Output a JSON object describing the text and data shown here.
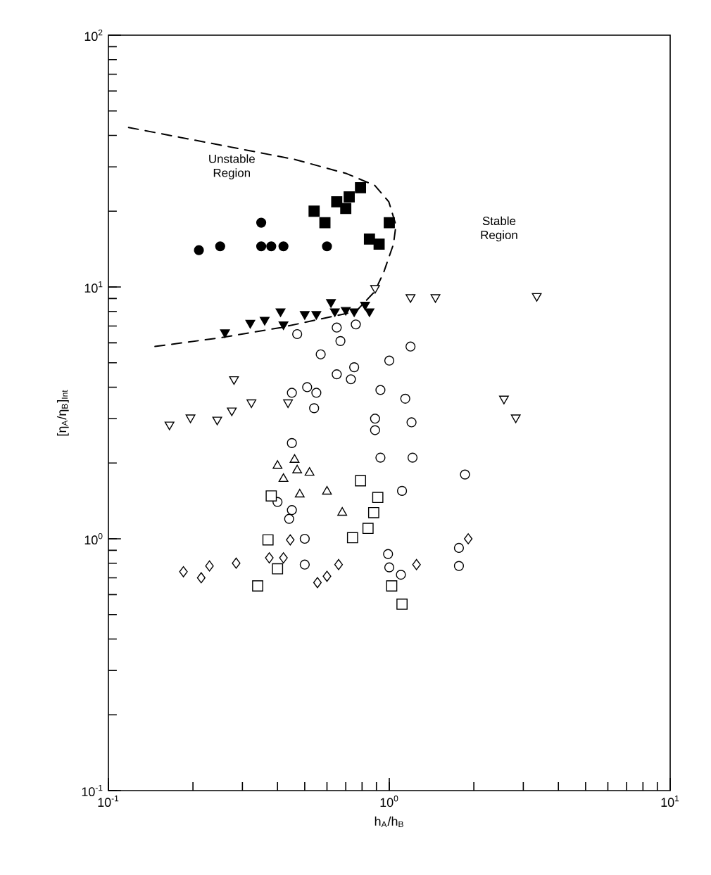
{
  "chart_data": {
    "type": "scatter",
    "xlabel": "h$_{A}$/h$_{B}$",
    "ylabel": "[η$_{A}$/η$_{B}$]$_{Int}$",
    "log": "xy",
    "grid": false,
    "xlim": [
      0.1,
      10
    ],
    "ylim": [
      0.1,
      100
    ],
    "xticks": [
      {
        "value": 0.1,
        "label": "10$^{-1}$"
      },
      {
        "value": 1,
        "label": "10$^{0}$"
      },
      {
        "value": 10,
        "label": "10$^{1}$"
      }
    ],
    "yticks": [
      {
        "value": 0.1,
        "label": "10$^{-1}$"
      },
      {
        "value": 1,
        "label": "10$^{0}$"
      },
      {
        "value": 10,
        "label": "10$^{1}$"
      },
      {
        "value": 100,
        "label": "10$^{2}$"
      }
    ],
    "annotations": [
      "Unstable Region",
      "Stable Region"
    ],
    "series": [
      {
        "type": "scatter",
        "color": "#000000",
        "marker": "circle",
        "x": [
          0.21,
          0.25,
          0.35,
          0.35,
          0.38,
          0.42,
          0.6
        ],
        "values": [
          14,
          14.5,
          18,
          14.5,
          14.5,
          14.5,
          14.5
        ]
      },
      {
        "type": "scatter",
        "color": "#000000",
        "marker": "square",
        "x": [
          0.54,
          0.59,
          0.65,
          0.7,
          0.72,
          0.79,
          0.85,
          0.92,
          1.0
        ],
        "values": [
          20,
          18,
          21.8,
          20.5,
          22.8,
          24.8,
          15.5,
          14.8,
          18
        ]
      },
      {
        "type": "scatter",
        "color": "#000000",
        "marker": "triangle",
        "x": [
          0.26,
          0.32,
          0.36,
          0.41,
          0.42,
          0.5,
          0.55,
          0.62,
          0.64,
          0.7,
          0.75,
          0.82,
          0.85
        ],
        "values": [
          6.6,
          7.2,
          7.4,
          8.0,
          7.1,
          7.8,
          7.8,
          8.7,
          8.0,
          8.1,
          8.0,
          8.5,
          8.0
        ]
      },
      {
        "type": "scatter",
        "color": "#000000",
        "marker": "triangle",
        "x": [
          0.89,
          1.19,
          1.46,
          3.35,
          0.28,
          0.165,
          0.196,
          0.244,
          0.275,
          0.323,
          0.436,
          2.56,
          2.82
        ],
        "values": [
          9.9,
          9.1,
          9.1,
          9.2,
          4.3,
          2.84,
          3.03,
          2.97,
          3.23,
          3.48,
          3.48,
          3.6,
          3.03
        ]
      },
      {
        "type": "scatter",
        "color": "#000000",
        "marker": "circle",
        "x": [
          0.47,
          0.65,
          0.67,
          0.76,
          0.57,
          1.19,
          1.0,
          0.65,
          0.75,
          0.73,
          0.51,
          0.55,
          0.45,
          0.54,
          0.93,
          1.14,
          0.89,
          1.2,
          0.89,
          0.45,
          0.93,
          1.21,
          1.86,
          1.11,
          0.4,
          0.45,
          0.44,
          0.5,
          0.5,
          0.99,
          1.0,
          1.1,
          1.77,
          1.77
        ],
        "values": [
          6.5,
          6.9,
          6.1,
          7.1,
          5.4,
          5.8,
          5.1,
          4.5,
          4.8,
          4.3,
          4.0,
          3.8,
          3.8,
          3.3,
          3.9,
          3.6,
          3.0,
          2.9,
          2.7,
          2.4,
          2.1,
          2.1,
          1.8,
          1.55,
          1.4,
          1.3,
          1.2,
          1.0,
          0.79,
          0.87,
          0.77,
          0.72,
          0.92,
          0.78
        ]
      },
      {
        "type": "scatter",
        "color": "#000000",
        "marker": "triangle",
        "x": [
          0.4,
          0.46,
          0.42,
          0.47,
          0.52,
          0.48,
          0.6,
          0.68
        ],
        "values": [
          1.95,
          2.06,
          1.73,
          1.87,
          1.83,
          1.5,
          1.54,
          1.27
        ]
      },
      {
        "type": "scatter",
        "color": "#000000",
        "marker": "square",
        "x": [
          0.79,
          0.91,
          0.38,
          0.88,
          0.84,
          0.74,
          0.37,
          0.4,
          0.34,
          1.02,
          1.11
        ],
        "values": [
          1.7,
          1.46,
          1.48,
          1.27,
          1.1,
          1.01,
          0.99,
          0.76,
          0.65,
          0.65,
          0.55
        ]
      },
      {
        "type": "scatter",
        "color": "#000000",
        "marker": "diamond",
        "x": [
          0.185,
          0.214,
          0.229,
          0.285,
          0.374,
          0.42,
          0.444,
          0.555,
          0.6,
          0.66,
          1.25,
          1.91
        ],
        "values": [
          0.74,
          0.7,
          0.78,
          0.8,
          0.84,
          0.84,
          0.99,
          0.67,
          0.71,
          0.79,
          0.79,
          1.0
        ]
      },
      {
        "type": "line",
        "color": "#000000",
        "line_style": "dashed",
        "marker": "none",
        "x": [
          0.118,
          0.254,
          0.461,
          0.705,
          0.888,
          0.996,
          1.056,
          1.035,
          0.957,
          0.888,
          0.761,
          0.411,
          0.254,
          0.146
        ],
        "values": [
          43,
          36.5,
          32.1,
          28.2,
          25.3,
          21.8,
          17.6,
          14.8,
          11.5,
          9.6,
          8.0,
          6.9,
          6.3,
          5.8
        ]
      }
    ]
  }
}
